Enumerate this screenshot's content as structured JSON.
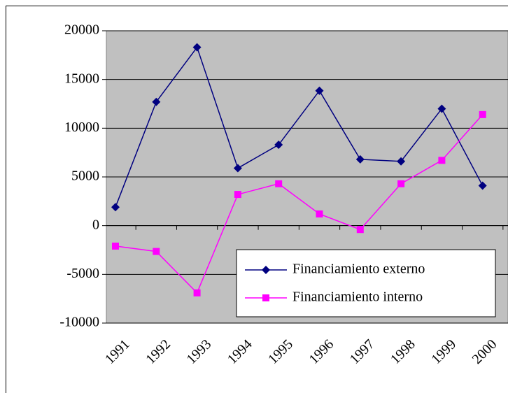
{
  "chart_data": {
    "type": "line",
    "categories": [
      "1991",
      "1992",
      "1993",
      "1994",
      "1995",
      "1996",
      "1997",
      "1998",
      "1999",
      "2000"
    ],
    "series": [
      {
        "name": "Financiamiento externo",
        "color": "#000080",
        "marker": "diamond",
        "values": [
          1900,
          12700,
          18300,
          5900,
          8300,
          13850,
          6800,
          6600,
          12000,
          4100
        ]
      },
      {
        "name": "Financiamiento interno",
        "color": "#ff00ff",
        "marker": "square",
        "values": [
          -2100,
          -2650,
          -6900,
          3200,
          4300,
          1200,
          -400,
          4300,
          6700,
          11400
        ]
      }
    ],
    "ylim": [
      -10000,
      20000
    ],
    "yticks": [
      -10000,
      -5000,
      0,
      5000,
      10000,
      15000,
      20000
    ],
    "grid": true,
    "legend": "lower right"
  }
}
